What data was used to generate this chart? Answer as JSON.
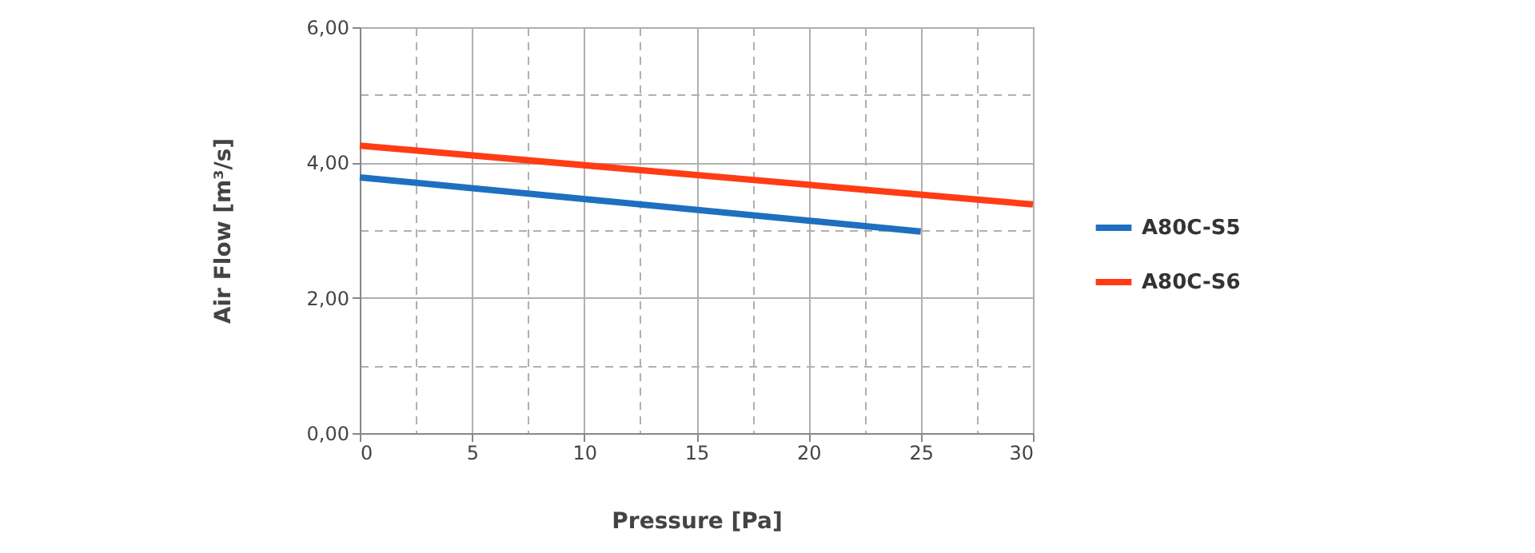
{
  "chart_data": {
    "type": "line",
    "xlabel": "Pressure [Pa]",
    "ylabel": "Air Flow [m³/s]",
    "series": [
      {
        "name": "A80C-S5",
        "color": "#1f6fc0",
        "x": [
          0,
          25
        ],
        "values": [
          3.78,
          2.98
        ]
      },
      {
        "name": "A80C-S6",
        "color": "#ff3c14",
        "x": [
          0,
          30
        ],
        "values": [
          4.25,
          3.38
        ]
      }
    ],
    "xlim": [
      0,
      30
    ],
    "ylim": [
      0,
      6
    ],
    "xticks": [
      0,
      {
        "value": 2.5,
        "label": null
      },
      5,
      {
        "value": 7.5,
        "label": null
      },
      10,
      {
        "value": 12.5,
        "label": null
      },
      15,
      {
        "value": 17.5,
        "label": null
      },
      20,
      {
        "value": 22.5,
        "label": null
      },
      25,
      {
        "value": 27.5,
        "label": null
      },
      30
    ],
    "yticks": [
      {
        "value": 0,
        "label": "0,00"
      },
      {
        "value": 1,
        "label": null
      },
      {
        "value": 2,
        "label": "2,00"
      },
      {
        "value": 3,
        "label": null
      },
      {
        "value": 4,
        "label": "4,00"
      },
      {
        "value": 5,
        "label": null
      },
      {
        "value": 6,
        "label": "6,00"
      }
    ],
    "grid": true,
    "legend": "right",
    "marker": "none",
    "line_style": "solid"
  }
}
